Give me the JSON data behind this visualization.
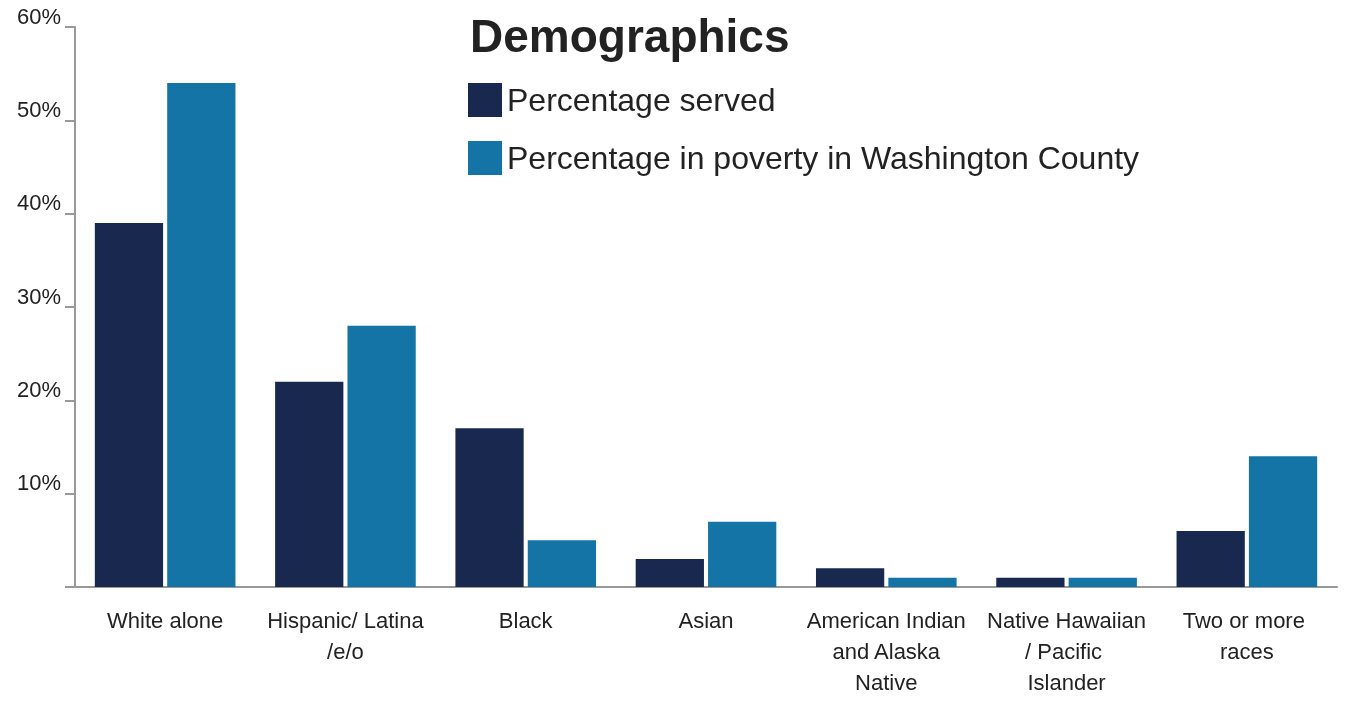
{
  "chart_data": {
    "type": "bar",
    "title": "Demographics",
    "categories": [
      "White alone",
      "Hispanic/ Latina/e/o",
      "Black",
      "Asian",
      "American Indian and Alaska Native",
      "Native Hawaiian/ Pacific Islander",
      "Two or more races"
    ],
    "series": [
      {
        "name": "Percentage served",
        "color": "#18284f",
        "values": [
          39,
          22,
          17,
          3,
          2,
          1,
          6
        ]
      },
      {
        "name": "Percentage in poverty in Washington County",
        "color": "#1474a6",
        "values": [
          54,
          28,
          5,
          7,
          1,
          1,
          14
        ]
      }
    ],
    "ylim": [
      0,
      60
    ],
    "yticks": [
      {
        "value": 0,
        "label": null
      },
      {
        "value": 10,
        "label": "10%"
      },
      {
        "value": 20,
        "label": "20%"
      },
      {
        "value": 30,
        "label": "30%"
      },
      {
        "value": 40,
        "label": "40%"
      },
      {
        "value": 50,
        "label": "50%"
      },
      {
        "value": 60,
        "label": "60%"
      }
    ],
    "grid": false,
    "legend": "top"
  }
}
